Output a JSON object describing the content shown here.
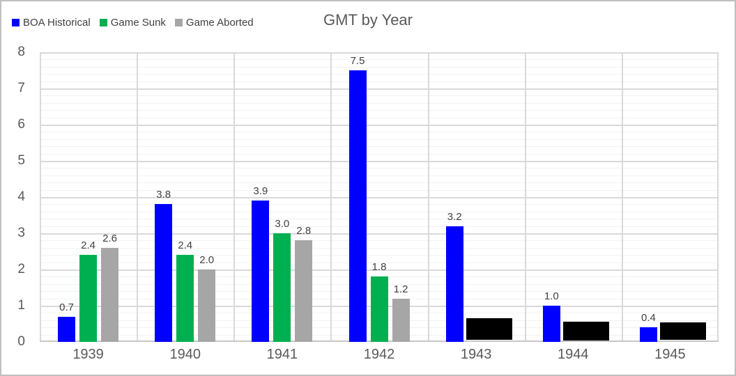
{
  "chart_data": {
    "type": "bar",
    "title": "GMT by Year",
    "categories": [
      "1939",
      "1940",
      "1941",
      "1942",
      "1943",
      "1944",
      "1945"
    ],
    "series": [
      {
        "name": "BOA Historical",
        "color": "#0000ff",
        "values": [
          0.7,
          3.8,
          3.9,
          7.5,
          3.2,
          1.0,
          0.4
        ]
      },
      {
        "name": "Game Sunk",
        "color": "#00b050",
        "values": [
          2.4,
          2.4,
          3.0,
          1.8,
          null,
          null,
          null
        ]
      },
      {
        "name": "Game Aborted",
        "color": "#a6a6a6",
        "values": [
          2.6,
          2.0,
          2.8,
          1.2,
          null,
          null,
          null
        ]
      }
    ],
    "data_labels": true,
    "xlabel": "",
    "ylabel": "",
    "ylim": [
      0,
      8
    ],
    "y_ticks": [
      0,
      1,
      2,
      3,
      4,
      5,
      6,
      7,
      8
    ],
    "y_major_step": 1,
    "y_minor_step": 0.2,
    "grid": "major+minor horizontal, category separators vertical",
    "legend_position": "top-left",
    "redactions": [
      {
        "category": "1943",
        "color": "#000000",
        "top_value": 0.65,
        "bottom_value": 0.05
      },
      {
        "category": "1944",
        "color": "#000000",
        "top_value": 0.56,
        "bottom_value": 0.03
      },
      {
        "category": "1945",
        "color": "#000000",
        "top_value": 0.54,
        "bottom_value": 0.06
      }
    ],
    "colors": {
      "plot_background": "#ffffff",
      "frame_border": "#bfbfbf",
      "major_grid": "#d9d9d9",
      "minor_grid": "#f2f2f2",
      "axis_line": "#c6c6c6",
      "title_text": "#595959",
      "axis_text": "#595959",
      "data_label_text": "#404040",
      "legend_text": "#3f3f3f"
    }
  }
}
